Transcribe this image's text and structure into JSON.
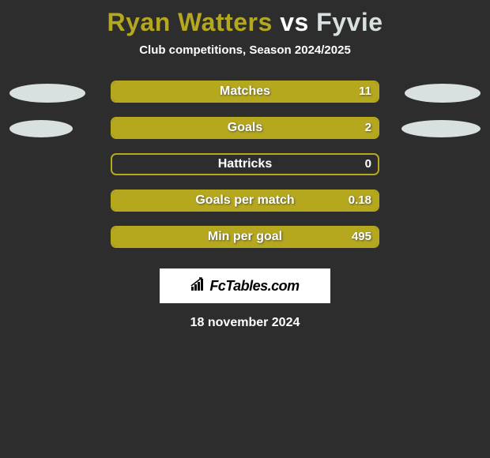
{
  "title": {
    "player1": "Ryan Watters",
    "vs": "vs",
    "player2": "Fyvie",
    "player1_color": "#b5a81f",
    "player2_color": "#d8e0e0"
  },
  "subtitle": "Club competitions, Season 2024/2025",
  "colors": {
    "background": "#2d2d2d",
    "bar_border": "#b5a81f",
    "bar_fill_left": "#b5a81f",
    "bar_fill_right": "#d8e0e0",
    "ellipse_left": "#d8e0e0",
    "ellipse_right": "#d8e0e0",
    "text_white": "#ffffff"
  },
  "ellipse_rows": [
    {
      "left_w": 96,
      "left_h": 24,
      "right_w": 96,
      "right_h": 24
    },
    {
      "left_w": 80,
      "left_h": 22,
      "right_w": 100,
      "right_h": 22
    }
  ],
  "rows": [
    {
      "label": "Matches",
      "value_left": "",
      "value_right": "11",
      "fill_left_pct": 0,
      "fill_right_pct": 100
    },
    {
      "label": "Goals",
      "value_left": "",
      "value_right": "2",
      "fill_left_pct": 0,
      "fill_right_pct": 100
    },
    {
      "label": "Hattricks",
      "value_left": "",
      "value_right": "0",
      "fill_left_pct": 0,
      "fill_right_pct": 0
    },
    {
      "label": "Goals per match",
      "value_left": "",
      "value_right": "0.18",
      "fill_left_pct": 0,
      "fill_right_pct": 100
    },
    {
      "label": "Min per goal",
      "value_left": "",
      "value_right": "495",
      "fill_left_pct": 0,
      "fill_right_pct": 100
    }
  ],
  "logo_text": "FcTables.com",
  "date": "18 november 2024"
}
